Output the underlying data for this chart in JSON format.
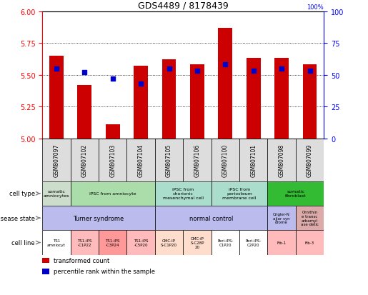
{
  "title": "GDS4489 / 8178439",
  "samples": [
    "GSM807097",
    "GSM807102",
    "GSM807103",
    "GSM807104",
    "GSM807105",
    "GSM807106",
    "GSM807100",
    "GSM807101",
    "GSM807098",
    "GSM807099"
  ],
  "transformed_count": [
    5.65,
    5.42,
    5.11,
    5.57,
    5.62,
    5.58,
    5.87,
    5.63,
    5.63,
    5.58
  ],
  "percentile_rank": [
    55,
    52,
    47,
    43,
    55,
    53,
    58,
    53,
    55,
    53
  ],
  "y_min": 5.0,
  "y_max": 6.0,
  "y_ticks": [
    5.0,
    5.25,
    5.5,
    5.75,
    6.0
  ],
  "y2_ticks": [
    0,
    25,
    50,
    75,
    100
  ],
  "bar_color": "#cc0000",
  "dot_color": "#0000cc",
  "gsm_bg": "#dddddd",
  "cell_type_groups": [
    {
      "label": "somatic\namniocytes",
      "span": [
        0,
        1
      ],
      "color": "#ccddcc"
    },
    {
      "label": "iPSC from amniocyte",
      "span": [
        1,
        4
      ],
      "color": "#aaddaa"
    },
    {
      "label": "iPSC from\nchorionic\nmesenchymal cell",
      "span": [
        4,
        6
      ],
      "color": "#aaddcc"
    },
    {
      "label": "iPSC from\nperiosteum\nmembrane cell",
      "span": [
        6,
        8
      ],
      "color": "#aaddcc"
    },
    {
      "label": "somatic\nfibroblast",
      "span": [
        8,
        10
      ],
      "color": "#33bb33"
    }
  ],
  "disease_state_groups": [
    {
      "label": "Turner syndrome",
      "span": [
        0,
        4
      ],
      "color": "#bbbbee"
    },
    {
      "label": "normal control",
      "span": [
        4,
        8
      ],
      "color": "#bbbbee"
    },
    {
      "label": "Crigler-N\najjar syn\ndrome",
      "span": [
        8,
        9
      ],
      "color": "#bbbbee"
    },
    {
      "label": "Ornithin\ne transc\narbamyl\nase detic",
      "span": [
        9,
        10
      ],
      "color": "#ddaaaa"
    }
  ],
  "cell_line_groups": [
    {
      "label": "TS1\namniocyt",
      "span": [
        0,
        1
      ],
      "color": "#ffffff"
    },
    {
      "label": "TS1-iPS\n-C1P22",
      "span": [
        1,
        2
      ],
      "color": "#ffbbbb"
    },
    {
      "label": "TS1-iPS\n-C3P24",
      "span": [
        2,
        3
      ],
      "color": "#ff9999"
    },
    {
      "label": "TS1-iPS\n-C5P20",
      "span": [
        3,
        4
      ],
      "color": "#ffbbbb"
    },
    {
      "label": "CMC-IP\nS-C1P20",
      "span": [
        4,
        5
      ],
      "color": "#ffddcc"
    },
    {
      "label": "CMC-iP\nS-C28P\n20",
      "span": [
        5,
        6
      ],
      "color": "#ffddcc"
    },
    {
      "label": "Peri-iPS-\nC1P20",
      "span": [
        6,
        7
      ],
      "color": "#ffffff"
    },
    {
      "label": "Peri-iPS-\nC2P20",
      "span": [
        7,
        8
      ],
      "color": "#ffffff"
    },
    {
      "label": "Fib-1",
      "span": [
        8,
        9
      ],
      "color": "#ffbbbb"
    },
    {
      "label": "Fib-3",
      "span": [
        9,
        10
      ],
      "color": "#ffbbbb"
    }
  ],
  "row_labels": [
    "cell type",
    "disease state",
    "cell line"
  ],
  "legend_items": [
    {
      "color": "#cc0000",
      "label": "transformed count"
    },
    {
      "color": "#0000cc",
      "label": "percentile rank within the sample"
    }
  ]
}
